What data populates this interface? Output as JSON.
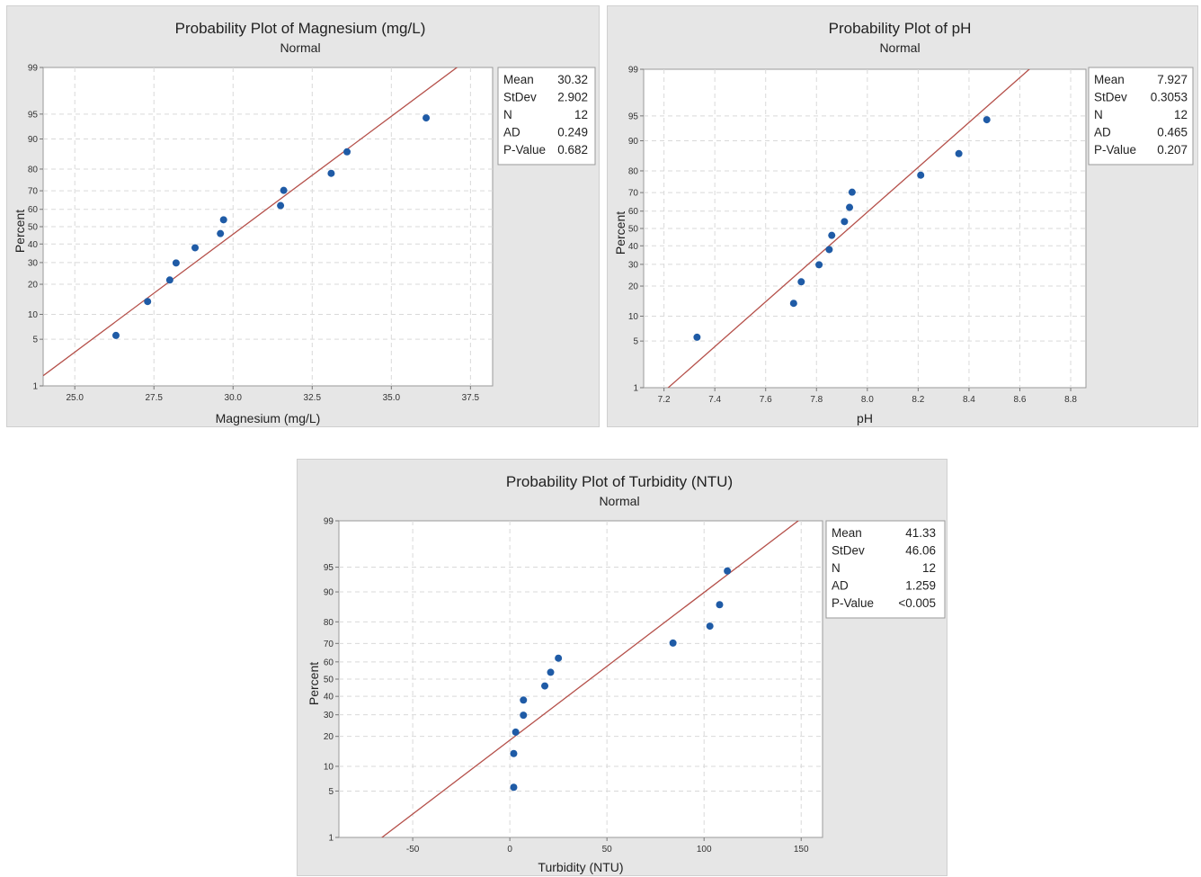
{
  "chart_data": [
    {
      "type": "scatter",
      "title": "Probability Plot of Magnesium (mg/L)",
      "subtitle": "Normal",
      "xlabel": "Magnesium (mg/L)",
      "ylabel": "Percent",
      "xlim": [
        24,
        38.2
      ],
      "x_ticks": [
        25.0,
        27.5,
        30.0,
        32.5,
        35.0,
        37.5
      ],
      "x_tick_labels": [
        "25.0",
        "27.5",
        "30.0",
        "32.5",
        "35.0",
        "37.5"
      ],
      "y_scale": "normal-probability",
      "y_ticks": [
        1,
        5,
        10,
        20,
        30,
        40,
        50,
        60,
        70,
        80,
        90,
        95,
        99
      ],
      "y_tick_labels": [
        "1",
        "5",
        "10",
        "20",
        "30",
        "40",
        "50",
        "60",
        "70",
        "80",
        "90",
        "95",
        "99"
      ],
      "grid": true,
      "points": [
        {
          "x": 26.3,
          "y": 5.6
        },
        {
          "x": 27.3,
          "y": 13.7
        },
        {
          "x": 28.0,
          "y": 21.8
        },
        {
          "x": 28.2,
          "y": 29.8
        },
        {
          "x": 28.8,
          "y": 37.9
        },
        {
          "x": 29.6,
          "y": 46.0
        },
        {
          "x": 29.7,
          "y": 54.0
        },
        {
          "x": 31.5,
          "y": 62.1
        },
        {
          "x": 31.6,
          "y": 70.2
        },
        {
          "x": 33.1,
          "y": 78.2
        },
        {
          "x": 33.6,
          "y": 86.3
        },
        {
          "x": 36.1,
          "y": 94.4
        }
      ],
      "fit": {
        "mean": 30.32,
        "stdev": 2.902
      },
      "stats": [
        {
          "label": "Mean",
          "value": "30.32"
        },
        {
          "label": "StDev",
          "value": "2.902"
        },
        {
          "label": "N",
          "value": "12"
        },
        {
          "label": "AD",
          "value": "0.249"
        },
        {
          "label": "P-Value",
          "value": "0.682"
        }
      ]
    },
    {
      "type": "scatter",
      "title": "Probability Plot of pH",
      "subtitle": "Normal",
      "xlabel": "pH",
      "ylabel": "Percent",
      "xlim": [
        7.12,
        8.86
      ],
      "x_ticks": [
        7.2,
        7.4,
        7.6,
        7.8,
        8.0,
        8.2,
        8.4,
        8.6,
        8.8
      ],
      "x_tick_labels": [
        "7.2",
        "7.4",
        "7.6",
        "7.8",
        "8.0",
        "8.2",
        "8.4",
        "8.6",
        "8.8"
      ],
      "y_scale": "normal-probability",
      "y_ticks": [
        1,
        5,
        10,
        20,
        30,
        40,
        50,
        60,
        70,
        80,
        90,
        95,
        99
      ],
      "y_tick_labels": [
        "1",
        "5",
        "10",
        "20",
        "30",
        "40",
        "50",
        "60",
        "70",
        "80",
        "90",
        "95",
        "99"
      ],
      "grid": true,
      "points": [
        {
          "x": 7.33,
          "y": 5.6
        },
        {
          "x": 7.71,
          "y": 13.7
        },
        {
          "x": 7.74,
          "y": 21.8
        },
        {
          "x": 7.81,
          "y": 29.8
        },
        {
          "x": 7.85,
          "y": 37.9
        },
        {
          "x": 7.86,
          "y": 46.0
        },
        {
          "x": 7.91,
          "y": 54.0
        },
        {
          "x": 7.93,
          "y": 62.1
        },
        {
          "x": 7.94,
          "y": 70.2
        },
        {
          "x": 8.21,
          "y": 78.2
        },
        {
          "x": 8.36,
          "y": 86.3
        },
        {
          "x": 8.47,
          "y": 94.4
        }
      ],
      "fit": {
        "mean": 7.927,
        "stdev": 0.3053
      },
      "stats": [
        {
          "label": "Mean",
          "value": "7.927"
        },
        {
          "label": "StDev",
          "value": "0.3053"
        },
        {
          "label": "N",
          "value": "12"
        },
        {
          "label": "AD",
          "value": "0.465"
        },
        {
          "label": "P-Value",
          "value": "0.207"
        }
      ]
    },
    {
      "type": "scatter",
      "title": "Probability Plot of Turbidity (NTU)",
      "subtitle": "Normal",
      "xlabel": "Turbidity (NTU)",
      "ylabel": "Percent",
      "xlim": [
        -88,
        161
      ],
      "x_ticks": [
        -50,
        0,
        50,
        100,
        150
      ],
      "x_tick_labels": [
        "-50",
        "0",
        "50",
        "100",
        "150"
      ],
      "y_scale": "normal-probability",
      "y_ticks": [
        1,
        5,
        10,
        20,
        30,
        40,
        50,
        60,
        70,
        80,
        90,
        95,
        99
      ],
      "y_tick_labels": [
        "1",
        "5",
        "10",
        "20",
        "30",
        "40",
        "50",
        "60",
        "70",
        "80",
        "90",
        "95",
        "99"
      ],
      "grid": true,
      "points": [
        {
          "x": 2,
          "y": 5.6
        },
        {
          "x": 2,
          "y": 13.7
        },
        {
          "x": 3,
          "y": 21.8
        },
        {
          "x": 7,
          "y": 29.8
        },
        {
          "x": 7,
          "y": 37.9
        },
        {
          "x": 18,
          "y": 46.0
        },
        {
          "x": 21,
          "y": 54.0
        },
        {
          "x": 25,
          "y": 62.1
        },
        {
          "x": 84,
          "y": 70.2
        },
        {
          "x": 103,
          "y": 78.2
        },
        {
          "x": 108,
          "y": 86.3
        },
        {
          "x": 112,
          "y": 94.4
        }
      ],
      "fit": {
        "mean": 41.33,
        "stdev": 46.06
      },
      "stats": [
        {
          "label": "Mean",
          "value": "41.33"
        },
        {
          "label": "StDev",
          "value": "46.06"
        },
        {
          "label": "N",
          "value": "12"
        },
        {
          "label": "AD",
          "value": "1.259"
        },
        {
          "label": "P-Value",
          "value": "<0.005"
        }
      ]
    }
  ],
  "colors": {
    "panel_background": "#e6e6e6",
    "plot_background": "#ffffff",
    "grid": "#d9d9d9",
    "fit_line": "#b5504a",
    "points": "#1f5ba6"
  }
}
